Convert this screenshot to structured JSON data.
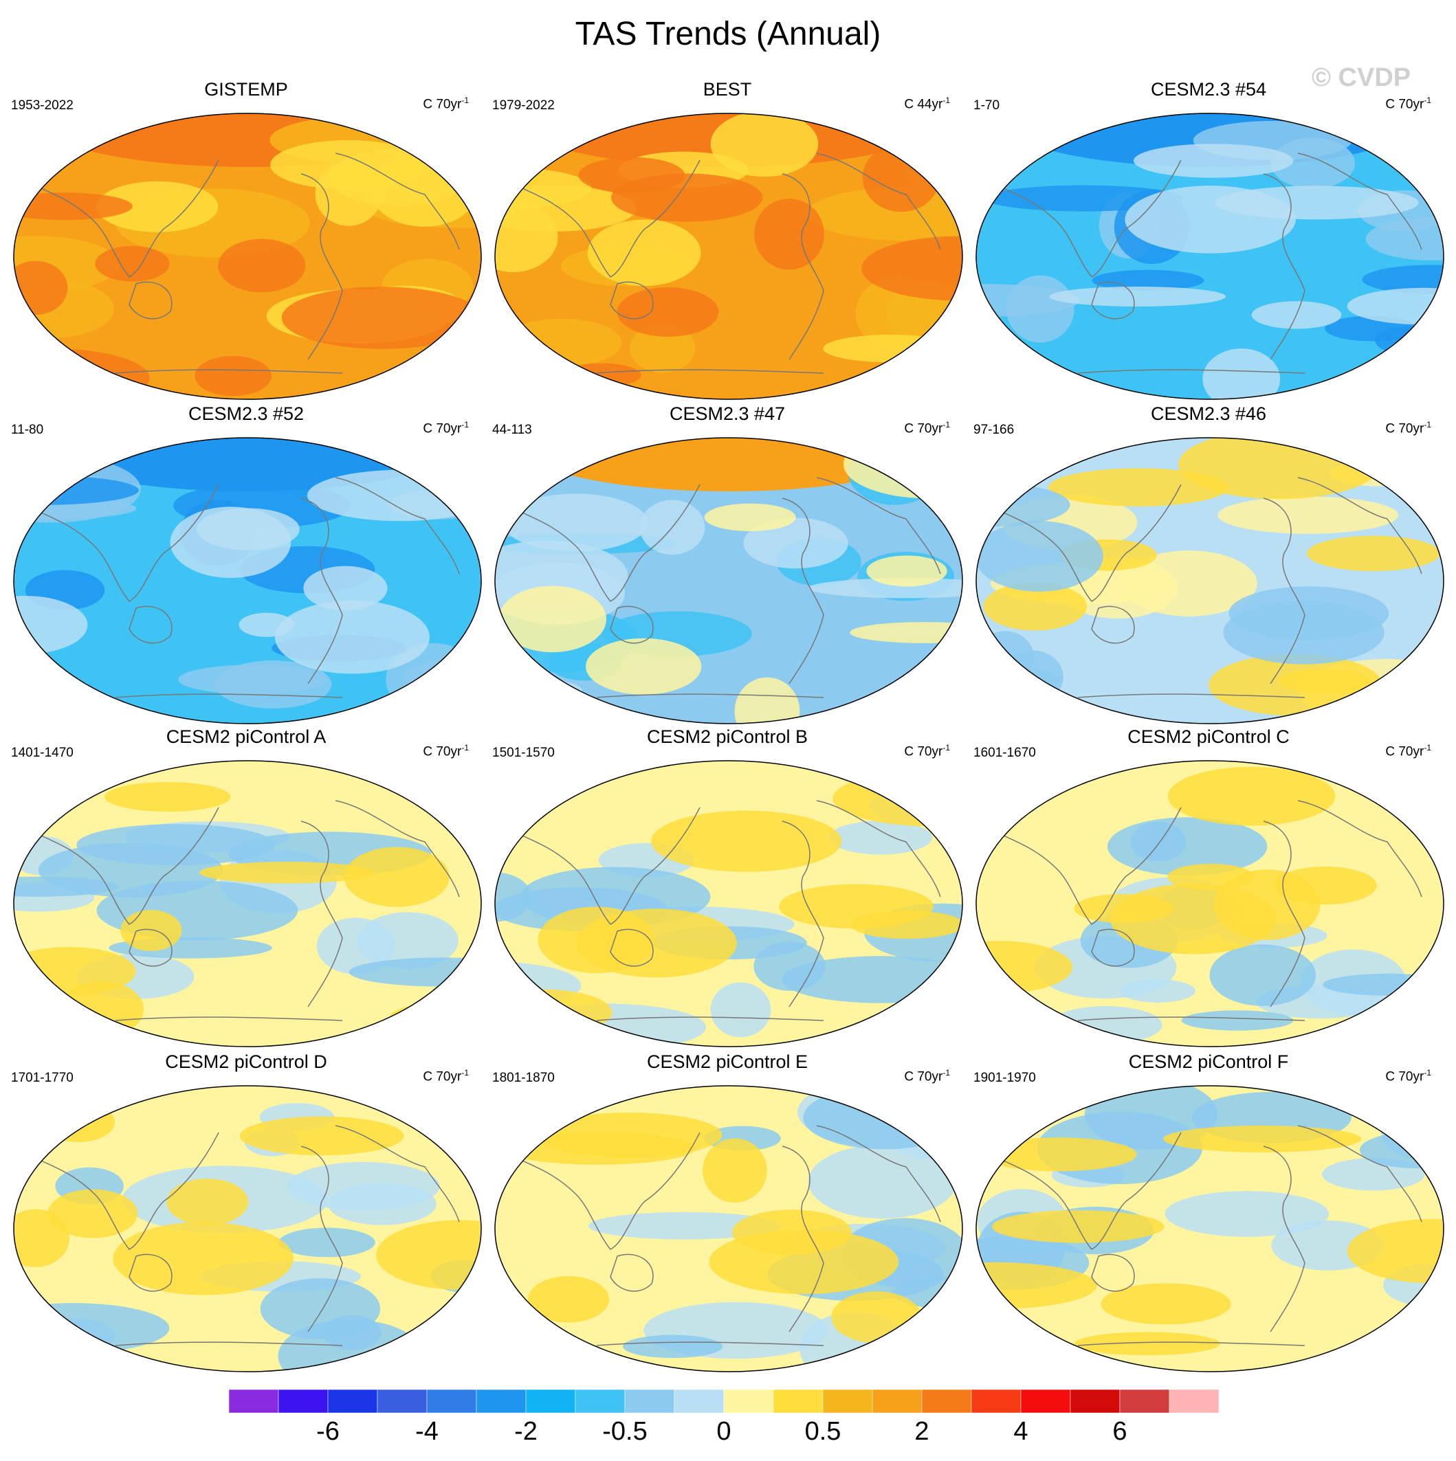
{
  "title": "TAS Trends (Annual)",
  "watermark": "© CVDP",
  "panels": [
    {
      "title": "GISTEMP",
      "period": "1953-2022",
      "units": "C 70yr",
      "units_sup": "-1",
      "pattern": "warm-strong"
    },
    {
      "title": "BEST",
      "period": "1979-2022",
      "units": "C 44yr",
      "units_sup": "-1",
      "pattern": "warm-strong"
    },
    {
      "title": "CESM2.3 #54",
      "period": "1-70",
      "units": "C 70yr",
      "units_sup": "-1",
      "pattern": "cool"
    },
    {
      "title": "CESM2.3 #52",
      "period": "11-80",
      "units": "C 70yr",
      "units_sup": "-1",
      "pattern": "cool"
    },
    {
      "title": "CESM2.3 #47",
      "period": "44-113",
      "units": "C 70yr",
      "units_sup": "-1",
      "pattern": "mixed-warm-north"
    },
    {
      "title": "CESM2.3 #46",
      "period": "97-166",
      "units": "C 70yr",
      "units_sup": "-1",
      "pattern": "mixed"
    },
    {
      "title": "CESM2 piControl A",
      "period": "1401-1470",
      "units": "C 70yr",
      "units_sup": "-1",
      "pattern": "neutral"
    },
    {
      "title": "CESM2 piControl B",
      "period": "1501-1570",
      "units": "C 70yr",
      "units_sup": "-1",
      "pattern": "neutral"
    },
    {
      "title": "CESM2 piControl C",
      "period": "1601-1670",
      "units": "C 70yr",
      "units_sup": "-1",
      "pattern": "neutral"
    },
    {
      "title": "CESM2 piControl D",
      "period": "1701-1770",
      "units": "C 70yr",
      "units_sup": "-1",
      "pattern": "neutral"
    },
    {
      "title": "CESM2 piControl E",
      "period": "1801-1870",
      "units": "C 70yr",
      "units_sup": "-1",
      "pattern": "neutral"
    },
    {
      "title": "CESM2 piControl F",
      "period": "1901-1970",
      "units": "C 70yr",
      "units_sup": "-1",
      "pattern": "neutral"
    }
  ],
  "colorbar": {
    "colors": [
      "#8a2be2",
      "#3c14f0",
      "#1a36e6",
      "#3a5ee0",
      "#2f7ee8",
      "#1e96f0",
      "#11b3f5",
      "#3fc3f5",
      "#8ccaf0",
      "#b9dff5",
      "#fff5a0",
      "#ffdd3c",
      "#f7b51c",
      "#f7a01a",
      "#f57a18",
      "#f53a14",
      "#f50c0c",
      "#d20a0a",
      "#d23c3c",
      "#ffb4b4"
    ],
    "labels": [
      "-6",
      "-4",
      "-2",
      "-0.5",
      "0",
      "0.5",
      "2",
      "4",
      "6"
    ]
  }
}
